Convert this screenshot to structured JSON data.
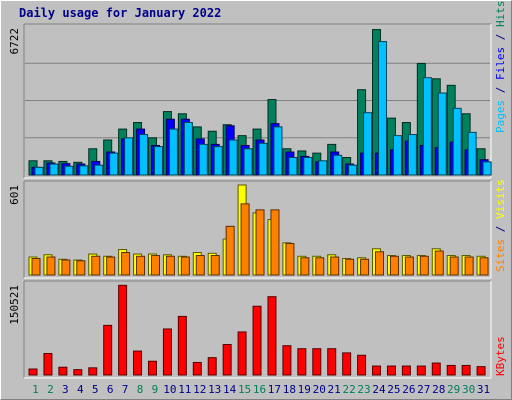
{
  "title": "Daily usage for January 2022",
  "colors": {
    "background": "#c0c0c0",
    "title": "#00008b",
    "hits": "#00805c",
    "files": "#0000ff",
    "pages": "#00c0ff",
    "visits": "#ffff00",
    "sites": "#ff8000",
    "kbytes": "#ff0000",
    "weekend": "#00805c",
    "weekday": "#00008b",
    "gridline": "#808080"
  },
  "chart_data": [
    {
      "type": "bar",
      "panel": "hits-files-pages",
      "y_max_label": "6722",
      "ylim": [
        0,
        6722
      ],
      "legend": [
        "Pages",
        "Files",
        "Hits"
      ],
      "categories": [
        "1",
        "2",
        "3",
        "4",
        "5",
        "6",
        "7",
        "8",
        "9",
        "10",
        "11",
        "12",
        "13",
        "14",
        "15",
        "16",
        "17",
        "18",
        "19",
        "20",
        "21",
        "22",
        "23",
        "24",
        "25",
        "26",
        "27",
        "28",
        "29",
        "30",
        "31"
      ],
      "series": [
        {
          "name": "Hits",
          "values": [
            650,
            650,
            620,
            580,
            1200,
            1600,
            2100,
            2400,
            1700,
            2900,
            2800,
            2200,
            2000,
            2300,
            1800,
            2100,
            3450,
            1200,
            1100,
            1000,
            1400,
            800,
            3900,
            6650,
            2600,
            2400,
            5100,
            4400,
            4100,
            2800,
            1200
          ]
        },
        {
          "name": "Files",
          "values": [
            350,
            550,
            520,
            500,
            620,
            1050,
            1650,
            2100,
            1350,
            2550,
            2550,
            1650,
            1400,
            2250,
            1350,
            1600,
            2350,
            1050,
            850,
            600,
            1050,
            500,
            1000,
            1000,
            1150,
            1550,
            1350,
            1250,
            1500,
            1150,
            700
          ]
        },
        {
          "name": "Pages",
          "values": [
            350,
            500,
            400,
            420,
            450,
            1000,
            1700,
            1850,
            1300,
            2100,
            2400,
            1400,
            1300,
            1600,
            1200,
            1450,
            2200,
            800,
            800,
            650,
            900,
            450,
            2850,
            6100,
            1800,
            1850,
            4450,
            3750,
            3050,
            1950,
            600
          ]
        }
      ]
    },
    {
      "type": "bar",
      "panel": "visits-sites",
      "y_max_label": "601",
      "ylim": [
        0,
        601
      ],
      "legend": [
        "Sites",
        "Visits"
      ],
      "categories": [
        "1",
        "2",
        "3",
        "4",
        "5",
        "6",
        "7",
        "8",
        "9",
        "10",
        "11",
        "12",
        "13",
        "14",
        "15",
        "16",
        "17",
        "18",
        "19",
        "20",
        "21",
        "22",
        "23",
        "24",
        "25",
        "26",
        "27",
        "28",
        "29",
        "30",
        "31"
      ],
      "series": [
        {
          "name": "Visits",
          "values": [
            120,
            135,
            105,
            100,
            140,
            125,
            170,
            140,
            140,
            135,
            125,
            150,
            145,
            240,
            601,
            415,
            370,
            215,
            125,
            125,
            135,
            110,
            115,
            175,
            130,
            130,
            130,
            175,
            130,
            130,
            125
          ]
        },
        {
          "name": "Sites",
          "values": [
            110,
            120,
            100,
            95,
            125,
            120,
            150,
            125,
            130,
            125,
            120,
            130,
            130,
            325,
            475,
            435,
            435,
            210,
            115,
            115,
            120,
            105,
            105,
            155,
            125,
            120,
            125,
            160,
            120,
            120,
            115
          ]
        }
      ]
    },
    {
      "type": "bar",
      "panel": "kbytes",
      "y_max_label": "150521",
      "ylim": [
        0,
        150521
      ],
      "legend": [
        "KBytes"
      ],
      "categories": [
        "1",
        "2",
        "3",
        "4",
        "5",
        "6",
        "7",
        "8",
        "9",
        "10",
        "11",
        "12",
        "13",
        "14",
        "15",
        "16",
        "17",
        "18",
        "19",
        "20",
        "21",
        "22",
        "23",
        "24",
        "25",
        "26",
        "27",
        "28",
        "29",
        "30",
        "31"
      ],
      "series": [
        {
          "name": "KBytes",
          "values": [
            10000,
            36000,
            13000,
            9000,
            12000,
            83000,
            150000,
            40000,
            23000,
            77000,
            98000,
            21000,
            29000,
            51000,
            72000,
            115000,
            131000,
            49000,
            44000,
            44000,
            44000,
            37000,
            33000,
            15000,
            15000,
            15000,
            15000,
            20000,
            16000,
            16000,
            14000
          ]
        }
      ]
    }
  ],
  "x_labels": [
    {
      "label": "1",
      "weekend": true
    },
    {
      "label": "2",
      "weekend": true
    },
    {
      "label": "3",
      "weekend": false
    },
    {
      "label": "4",
      "weekend": false
    },
    {
      "label": "5",
      "weekend": false
    },
    {
      "label": "6",
      "weekend": false
    },
    {
      "label": "7",
      "weekend": false
    },
    {
      "label": "8",
      "weekend": true
    },
    {
      "label": "9",
      "weekend": true
    },
    {
      "label": "10",
      "weekend": false
    },
    {
      "label": "11",
      "weekend": false
    },
    {
      "label": "12",
      "weekend": false
    },
    {
      "label": "13",
      "weekend": false
    },
    {
      "label": "14",
      "weekend": false
    },
    {
      "label": "15",
      "weekend": true
    },
    {
      "label": "16",
      "weekend": true
    },
    {
      "label": "17",
      "weekend": false
    },
    {
      "label": "18",
      "weekend": false
    },
    {
      "label": "19",
      "weekend": false
    },
    {
      "label": "20",
      "weekend": false
    },
    {
      "label": "21",
      "weekend": false
    },
    {
      "label": "22",
      "weekend": true
    },
    {
      "label": "23",
      "weekend": true
    },
    {
      "label": "24",
      "weekend": false
    },
    {
      "label": "25",
      "weekend": false
    },
    {
      "label": "26",
      "weekend": false
    },
    {
      "label": "27",
      "weekend": false
    },
    {
      "label": "28",
      "weekend": false
    },
    {
      "label": "29",
      "weekend": true
    },
    {
      "label": "30",
      "weekend": true
    },
    {
      "label": "31",
      "weekend": false
    }
  ]
}
